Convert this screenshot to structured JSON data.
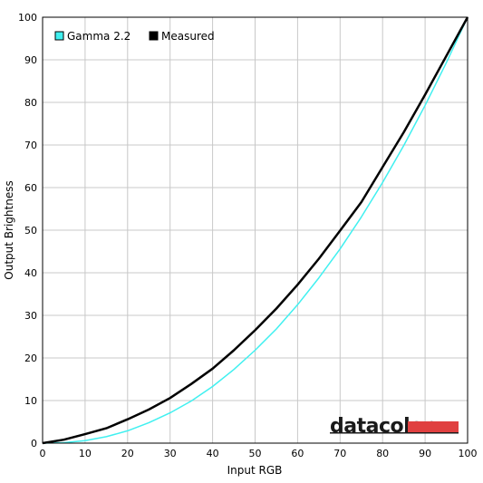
{
  "chart_data": {
    "type": "line",
    "xlabel": "Input RGB",
    "ylabel": "Output Brightness",
    "xlim": [
      0,
      100
    ],
    "ylim": [
      0,
      100
    ],
    "xticks": [
      0,
      10,
      20,
      30,
      40,
      50,
      60,
      70,
      80,
      90,
      100
    ],
    "yticks": [
      0,
      10,
      20,
      30,
      40,
      50,
      60,
      70,
      80,
      90,
      100
    ],
    "grid": true,
    "legend_position": "top-left",
    "series": [
      {
        "name": "Gamma 2.2",
        "color": "#40f0f0",
        "x": [
          0,
          5,
          10,
          15,
          20,
          25,
          30,
          35,
          40,
          45,
          50,
          55,
          60,
          65,
          70,
          75,
          80,
          85,
          90,
          95,
          100
        ],
        "y": [
          0,
          0.1,
          0.6,
          1.5,
          2.9,
          4.8,
          7.1,
          9.9,
          13.3,
          17.3,
          21.8,
          26.8,
          32.5,
          38.8,
          45.6,
          53.1,
          61.2,
          69.9,
          79.3,
          89.3,
          100
        ]
      },
      {
        "name": "Measured",
        "color": "#000000",
        "x": [
          0,
          5,
          10,
          15,
          20,
          25,
          30,
          35,
          40,
          45,
          50,
          55,
          60,
          65,
          70,
          75,
          80,
          85,
          90,
          95,
          100
        ],
        "y": [
          0,
          0.8,
          2.1,
          3.5,
          5.6,
          7.9,
          10.6,
          13.9,
          17.5,
          21.8,
          26.5,
          31.6,
          37.2,
          43.3,
          49.9,
          56.6,
          64.8,
          73.0,
          81.8,
          90.9,
          100
        ]
      }
    ]
  },
  "logo": {
    "text": "datacolor",
    "bar_color": "#e04040"
  }
}
